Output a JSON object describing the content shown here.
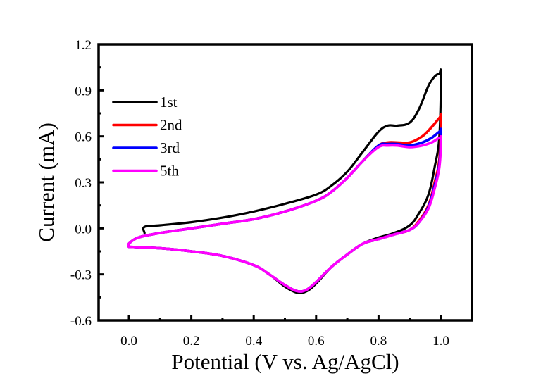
{
  "chart_data": {
    "type": "line",
    "title": "",
    "xlabel": "Potential (V vs. Ag/AgCl)",
    "ylabel": "Current (mA)",
    "xlim": [
      -0.1,
      1.1
    ],
    "ylim": [
      -0.6,
      1.2
    ],
    "xticks": [
      "0.0",
      "0.2",
      "0.4",
      "0.6",
      "0.8",
      "1.0"
    ],
    "xtick_values": [
      0.0,
      0.2,
      0.4,
      0.6,
      0.8,
      1.0
    ],
    "yticks": [
      "-0.6",
      "-0.3",
      "0.0",
      "0.3",
      "0.6",
      "0.9",
      "1.2"
    ],
    "ytick_values": [
      -0.6,
      -0.3,
      0.0,
      0.3,
      0.6,
      0.9,
      1.2
    ],
    "grid": false,
    "legend_position": "top-left",
    "series": [
      {
        "name": "1st",
        "color": "#000000",
        "points": [
          [
            0.05,
            -0.03
          ],
          [
            0.05,
            0.01
          ],
          [
            0.1,
            0.02
          ],
          [
            0.2,
            0.04
          ],
          [
            0.3,
            0.07
          ],
          [
            0.4,
            0.11
          ],
          [
            0.5,
            0.16
          ],
          [
            0.6,
            0.22
          ],
          [
            0.65,
            0.28
          ],
          [
            0.7,
            0.37
          ],
          [
            0.75,
            0.5
          ],
          [
            0.8,
            0.63
          ],
          [
            0.83,
            0.67
          ],
          [
            0.86,
            0.67
          ],
          [
            0.9,
            0.69
          ],
          [
            0.93,
            0.78
          ],
          [
            0.96,
            0.93
          ],
          [
            0.98,
            0.99
          ],
          [
            0.995,
            1.01
          ],
          [
            1.0,
            1.0
          ],
          [
            0.995,
            0.6
          ],
          [
            0.98,
            0.4
          ],
          [
            0.96,
            0.22
          ],
          [
            0.93,
            0.1
          ],
          [
            0.9,
            0.02
          ],
          [
            0.85,
            -0.03
          ],
          [
            0.8,
            -0.06
          ],
          [
            0.75,
            -0.1
          ],
          [
            0.7,
            -0.17
          ],
          [
            0.65,
            -0.25
          ],
          [
            0.6,
            -0.36
          ],
          [
            0.57,
            -0.41
          ],
          [
            0.54,
            -0.42
          ],
          [
            0.5,
            -0.38
          ],
          [
            0.45,
            -0.3
          ],
          [
            0.4,
            -0.24
          ],
          [
            0.3,
            -0.18
          ],
          [
            0.2,
            -0.15
          ],
          [
            0.1,
            -0.13
          ],
          [
            0.0,
            -0.12
          ]
        ]
      },
      {
        "name": "2nd",
        "color": "#ff0000",
        "points": [
          [
            0.0,
            -0.12
          ],
          [
            0.0,
            -0.1
          ],
          [
            0.03,
            -0.06
          ],
          [
            0.1,
            -0.03
          ],
          [
            0.2,
            0.0
          ],
          [
            0.3,
            0.03
          ],
          [
            0.4,
            0.06
          ],
          [
            0.5,
            0.11
          ],
          [
            0.6,
            0.18
          ],
          [
            0.65,
            0.24
          ],
          [
            0.7,
            0.33
          ],
          [
            0.75,
            0.44
          ],
          [
            0.8,
            0.54
          ],
          [
            0.83,
            0.56
          ],
          [
            0.86,
            0.56
          ],
          [
            0.9,
            0.56
          ],
          [
            0.94,
            0.6
          ],
          [
            0.97,
            0.66
          ],
          [
            0.995,
            0.72
          ],
          [
            1.0,
            0.72
          ],
          [
            0.995,
            0.45
          ],
          [
            0.98,
            0.3
          ],
          [
            0.96,
            0.15
          ],
          [
            0.93,
            0.05
          ],
          [
            0.9,
            -0.01
          ],
          [
            0.85,
            -0.04
          ],
          [
            0.8,
            -0.07
          ],
          [
            0.75,
            -0.1
          ],
          [
            0.7,
            -0.17
          ],
          [
            0.65,
            -0.25
          ],
          [
            0.6,
            -0.35
          ],
          [
            0.57,
            -0.4
          ],
          [
            0.54,
            -0.41
          ],
          [
            0.5,
            -0.37
          ],
          [
            0.45,
            -0.3
          ],
          [
            0.4,
            -0.24
          ],
          [
            0.3,
            -0.18
          ],
          [
            0.2,
            -0.15
          ],
          [
            0.1,
            -0.13
          ],
          [
            0.0,
            -0.12
          ]
        ]
      },
      {
        "name": "3rd",
        "color": "#0000ff",
        "points": [
          [
            0.0,
            -0.12
          ],
          [
            0.0,
            -0.1
          ],
          [
            0.03,
            -0.06
          ],
          [
            0.1,
            -0.03
          ],
          [
            0.2,
            0.0
          ],
          [
            0.3,
            0.03
          ],
          [
            0.4,
            0.06
          ],
          [
            0.5,
            0.11
          ],
          [
            0.6,
            0.18
          ],
          [
            0.65,
            0.24
          ],
          [
            0.7,
            0.33
          ],
          [
            0.75,
            0.44
          ],
          [
            0.8,
            0.54
          ],
          [
            0.83,
            0.55
          ],
          [
            0.86,
            0.55
          ],
          [
            0.9,
            0.54
          ],
          [
            0.94,
            0.56
          ],
          [
            0.97,
            0.59
          ],
          [
            0.995,
            0.63
          ],
          [
            1.0,
            0.63
          ],
          [
            0.995,
            0.42
          ],
          [
            0.98,
            0.28
          ],
          [
            0.96,
            0.14
          ],
          [
            0.93,
            0.04
          ],
          [
            0.9,
            -0.01
          ],
          [
            0.85,
            -0.04
          ],
          [
            0.8,
            -0.07
          ],
          [
            0.75,
            -0.1
          ],
          [
            0.7,
            -0.17
          ],
          [
            0.65,
            -0.25
          ],
          [
            0.6,
            -0.35
          ],
          [
            0.57,
            -0.4
          ],
          [
            0.54,
            -0.41
          ],
          [
            0.5,
            -0.37
          ],
          [
            0.45,
            -0.3
          ],
          [
            0.4,
            -0.24
          ],
          [
            0.3,
            -0.18
          ],
          [
            0.2,
            -0.15
          ],
          [
            0.1,
            -0.13
          ],
          [
            0.0,
            -0.12
          ]
        ]
      },
      {
        "name": "5th",
        "color": "#ff00ff",
        "points": [
          [
            0.0,
            -0.12
          ],
          [
            0.0,
            -0.1
          ],
          [
            0.03,
            -0.06
          ],
          [
            0.1,
            -0.03
          ],
          [
            0.2,
            0.0
          ],
          [
            0.3,
            0.03
          ],
          [
            0.4,
            0.06
          ],
          [
            0.5,
            0.11
          ],
          [
            0.6,
            0.18
          ],
          [
            0.65,
            0.24
          ],
          [
            0.7,
            0.33
          ],
          [
            0.75,
            0.44
          ],
          [
            0.8,
            0.53
          ],
          [
            0.83,
            0.54
          ],
          [
            0.86,
            0.54
          ],
          [
            0.9,
            0.53
          ],
          [
            0.94,
            0.54
          ],
          [
            0.97,
            0.56
          ],
          [
            0.995,
            0.59
          ],
          [
            1.0,
            0.58
          ],
          [
            0.995,
            0.4
          ],
          [
            0.98,
            0.26
          ],
          [
            0.96,
            0.13
          ],
          [
            0.93,
            0.04
          ],
          [
            0.9,
            -0.01
          ],
          [
            0.85,
            -0.04
          ],
          [
            0.8,
            -0.07
          ],
          [
            0.75,
            -0.1
          ],
          [
            0.7,
            -0.17
          ],
          [
            0.65,
            -0.25
          ],
          [
            0.6,
            -0.35
          ],
          [
            0.57,
            -0.4
          ],
          [
            0.54,
            -0.41
          ],
          [
            0.5,
            -0.37
          ],
          [
            0.45,
            -0.3
          ],
          [
            0.4,
            -0.24
          ],
          [
            0.3,
            -0.18
          ],
          [
            0.2,
            -0.15
          ],
          [
            0.1,
            -0.13
          ],
          [
            0.0,
            -0.12
          ]
        ]
      }
    ]
  }
}
